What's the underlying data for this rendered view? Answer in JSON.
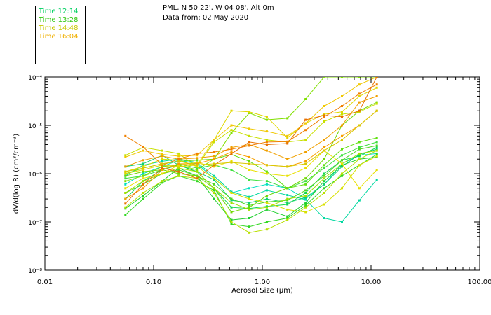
{
  "header": {
    "line1": "PML, N 50 22', W 04 08', Alt 0m",
    "line2": "Data from: 02 May 2020"
  },
  "legend": [
    {
      "label": "Time 12:14",
      "color": "#00d060"
    },
    {
      "label": "Time 13:28",
      "color": "#30c810"
    },
    {
      "label": "Time 14:48",
      "color": "#c8c800"
    },
    {
      "label": "Time 16:04",
      "color": "#f0b000"
    }
  ],
  "chart_data": {
    "type": "line",
    "xscale": "log",
    "yscale": "log",
    "xlim": [
      0.01,
      100
    ],
    "ylim": [
      1e-08,
      0.0001
    ],
    "xlabel": "Aerosol Size (μm)",
    "ylabel": "dV/d(log R)  (cm³/cm⁻³)",
    "xticks": [
      "0.01",
      "0.10",
      "1.00",
      "10.00",
      "100.00"
    ],
    "yticks": [
      "10⁻⁸",
      "10⁻⁷",
      "10⁻⁶",
      "10⁻⁵",
      "10⁻⁴"
    ],
    "x": [
      0.055,
      0.08,
      0.12,
      0.17,
      0.25,
      0.36,
      0.52,
      0.76,
      1.1,
      1.7,
      2.5,
      3.7,
      5.4,
      7.8,
      11.3
    ],
    "series": [
      {
        "color": "#00d8a0",
        "values": [
          9e-07,
          1.5e-06,
          1.8e-06,
          2e-06,
          1.7e-06,
          9e-07,
          4.2e-07,
          3.3e-07,
          4.5e-07,
          3.6e-07,
          2.9e-07,
          1.2e-07,
          1e-07,
          2.8e-07,
          7.5e-07
        ]
      },
      {
        "color": "#00e0c0",
        "values": [
          6e-07,
          1e-06,
          1.4e-06,
          1.9e-06,
          1.6e-06,
          8e-07,
          4e-07,
          5e-07,
          6e-07,
          5e-07,
          3e-07,
          6e-07,
          1.6e-06,
          2.4e-06,
          2.6e-06
        ]
      },
      {
        "color": "#10d070",
        "values": [
          1.4e-06,
          1.6e-06,
          2.4e-06,
          1.5e-06,
          1.1e-06,
          7.5e-07,
          2.8e-07,
          2.5e-07,
          3e-07,
          2.5e-07,
          3.2e-07,
          6e-07,
          1.4e-06,
          2.5e-06,
          3.2e-06
        ]
      },
      {
        "color": "#10d850",
        "values": [
          3e-07,
          7e-07,
          1.2e-06,
          1.5e-06,
          1.1e-06,
          5e-07,
          2e-07,
          1.9e-07,
          2.1e-07,
          2.3e-07,
          4e-07,
          1e-06,
          1.9e-06,
          2.3e-06,
          3.5e-06
        ]
      },
      {
        "color": "#20d030",
        "values": [
          1.9e-07,
          3.5e-07,
          7e-07,
          1.3e-06,
          9e-07,
          3e-07,
          1.1e-07,
          1.2e-07,
          1.8e-07,
          1.3e-07,
          2.5e-07,
          7e-07,
          1.5e-06,
          2e-06,
          2.2e-06
        ]
      },
      {
        "color": "#30d820",
        "values": [
          1.4e-07,
          3e-07,
          6.5e-07,
          9e-07,
          7e-07,
          4.5e-07,
          9e-08,
          8e-08,
          1e-07,
          1.2e-07,
          2.2e-07,
          5e-07,
          9e-07,
          1.5e-06,
          2.5e-06
        ]
      },
      {
        "color": "#40e040",
        "values": [
          8e-07,
          9e-07,
          1.2e-06,
          1.6e-06,
          1.3e-06,
          1.5e-06,
          1.2e-06,
          7.5e-07,
          7e-07,
          5e-07,
          7e-07,
          1.3e-06,
          2.4e-06,
          3.5e-06,
          4.5e-06
        ]
      },
      {
        "color": "#50d820",
        "values": [
          4e-07,
          6e-07,
          1e-06,
          1.2e-06,
          9e-07,
          6e-07,
          3e-07,
          2.2e-07,
          2.6e-07,
          2.8e-07,
          4.5e-07,
          9e-07,
          1.9e-06,
          3.2e-06,
          3.8e-06
        ]
      },
      {
        "color": "#60e010",
        "values": [
          1e-06,
          1.3e-06,
          1.6e-06,
          1.8e-06,
          1.9e-06,
          2e-06,
          2.5e-06,
          1.8e-06,
          1.1e-06,
          5e-07,
          6e-07,
          1.5e-06,
          3.2e-06,
          4.5e-06,
          5.5e-06
        ]
      },
      {
        "color": "#70d800",
        "values": [
          9e-07,
          1.1e-06,
          1.2e-06,
          1e-06,
          9e-07,
          5e-07,
          1.6e-07,
          2e-07,
          3.5e-07,
          5e-07,
          8e-07,
          2e-06,
          1e-05,
          2e-05,
          3e-05
        ]
      },
      {
        "color": "#80e000",
        "values": [
          7e-07,
          9e-07,
          1.4e-06,
          1.5e-06,
          1.2e-06,
          2e-06,
          7e-06,
          1.8e-05,
          1.3e-05,
          1.4e-05,
          3.5e-05,
          0.0001,
          0.0001,
          0.0001,
          0.0001
        ]
      },
      {
        "color": "#a0e000",
        "values": [
          4e-07,
          7e-07,
          1e-06,
          1.3e-06,
          1.1e-06,
          5e-07,
          2.5e-07,
          1.8e-07,
          2e-07,
          3e-07,
          3.5e-07,
          8e-07,
          1.6e-06,
          2.6e-06,
          3e-06
        ]
      },
      {
        "color": "#b8e000",
        "values": [
          2e-07,
          4e-07,
          7e-07,
          9e-07,
          8e-07,
          4e-07,
          1e-07,
          6e-08,
          7e-08,
          1.1e-07,
          2e-07,
          4e-07,
          1e-06,
          2e-06,
          3e-06
        ]
      },
      {
        "color": "#c8e000",
        "values": [
          2.4e-06,
          3.5e-06,
          3e-06,
          2.6e-06,
          1.4e-06,
          4.5e-06,
          8e-06,
          6e-06,
          5e-06,
          4.5e-06,
          5e-06,
          1.2e-05,
          1.7e-05,
          1.9e-05,
          2.8e-05
        ]
      },
      {
        "color": "#d8e000",
        "values": [
          1.1e-06,
          1.4e-06,
          2e-06,
          1.9e-06,
          1.4e-06,
          8e-07,
          4e-07,
          3e-07,
          2.5e-07,
          1.8e-07,
          1.6e-07,
          2.3e-07,
          5e-07,
          1.5e-06,
          2.3e-06
        ]
      },
      {
        "color": "#e0d800",
        "values": [
          1e-06,
          1.2e-06,
          1.5e-06,
          1.4e-06,
          1.5e-06,
          5e-06,
          2e-05,
          1.9e-05,
          1.5e-05,
          5.5e-06,
          1.1e-05,
          1.7e-05,
          1.9e-05,
          4e-05,
          6e-05
        ]
      },
      {
        "color": "#e8e000",
        "values": [
          5e-07,
          8e-07,
          1e-06,
          1.5e-06,
          1.7e-06,
          1.4e-06,
          1.8e-06,
          1.2e-06,
          1e-06,
          9e-07,
          1.3e-06,
          3e-06,
          1.6e-06,
          5e-07,
          1.2e-06
        ]
      },
      {
        "color": "#f0c800",
        "values": [
          2.2e-06,
          3e-06,
          2.5e-06,
          2.3e-06,
          2.4e-06,
          5e-06,
          1e-05,
          8.5e-06,
          7.5e-06,
          6e-06,
          1.1e-05,
          2.5e-05,
          4e-05,
          7e-05,
          0.0001
        ]
      },
      {
        "color": "#f0a000",
        "values": [
          1.4e-06,
          1.9e-06,
          2.3e-06,
          2e-06,
          2.1e-06,
          2.3e-06,
          3.5e-06,
          4e-06,
          3e-06,
          2e-06,
          2.8e-06,
          5e-06,
          1e-05,
          3e-05,
          4e-05
        ]
      },
      {
        "color": "#f08000",
        "values": [
          6e-06,
          3.6e-06,
          1.5e-06,
          2e-06,
          2.6e-06,
          2.8e-06,
          3.2e-06,
          3.8e-06,
          4.5e-06,
          4.6e-06,
          8e-06,
          1.5e-05,
          2.5e-05,
          4.5e-05,
          7e-05
        ]
      },
      {
        "color": "#f8a000",
        "values": [
          3e-07,
          5e-07,
          1.2e-06,
          1.6e-06,
          1.6e-06,
          2e-06,
          2.8e-06,
          2.2e-06,
          1.5e-06,
          1.4e-06,
          1.8e-06,
          3.5e-06,
          6e-06,
          1e-05,
          2e-05
        ]
      },
      {
        "color": "#e87000",
        "values": [
          2.4e-07,
          6e-07,
          1.3e-06,
          1.1e-06,
          8e-07,
          1.5e-06,
          2.6e-06,
          4.5e-06,
          4e-06,
          4.2e-06,
          1.3e-05,
          1.6e-05,
          1.5e-05,
          2e-05,
          0.0001
        ]
      },
      {
        "color": "#d8c800",
        "values": [
          1.1e-06,
          1.3e-06,
          1.6e-06,
          1.8e-06,
          1.5e-06,
          1.6e-06,
          1.7e-06,
          1.6e-06,
          1.5e-06,
          1.4e-06,
          1.6e-06,
          3e-06,
          5e-06,
          1e-05,
          2e-05
        ]
      }
    ]
  }
}
